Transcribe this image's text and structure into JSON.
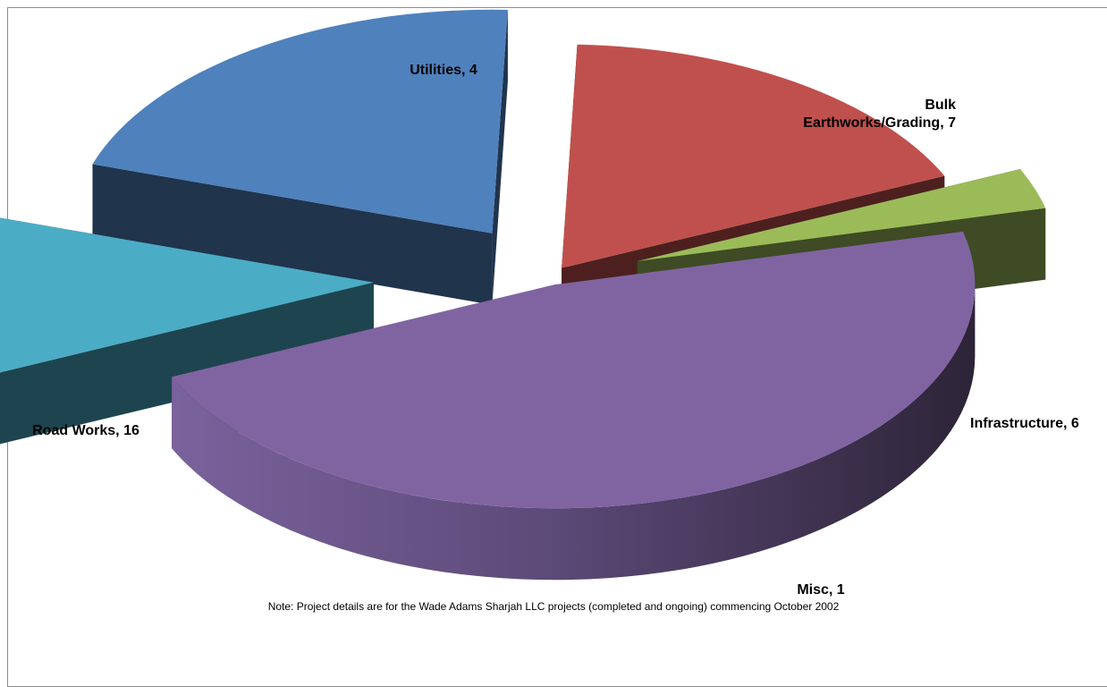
{
  "chart_data": {
    "type": "pie",
    "title": "",
    "categories": [
      "Road Works",
      "Utilities",
      "Bulk Earthworks/Grading",
      "Infrastructure",
      "Misc"
    ],
    "values": [
      16,
      4,
      7,
      6,
      1
    ],
    "labels": [
      "Road Works, 16",
      "Utilities, 4",
      "Bulk Earthworks/Grading, 7",
      "Infrastructure, 6",
      "Misc, 1"
    ],
    "label_lines": [
      [
        "Road Works, 16"
      ],
      [
        "Utilities, 4"
      ],
      [
        "Bulk",
        "Earthworks/Grading, 7"
      ],
      [
        "Infrastructure, 6"
      ],
      [
        "Misc, 1"
      ]
    ],
    "colors": [
      "#8064a2",
      "#4bacc6",
      "#4f81bd",
      "#c0504d",
      "#9bbb59"
    ],
    "style": "3d-exploded",
    "legend": "none"
  },
  "note": "Note: Project details are for the Wade Adams Sharjah LLC projects (completed and ongoing) commencing October 2002"
}
